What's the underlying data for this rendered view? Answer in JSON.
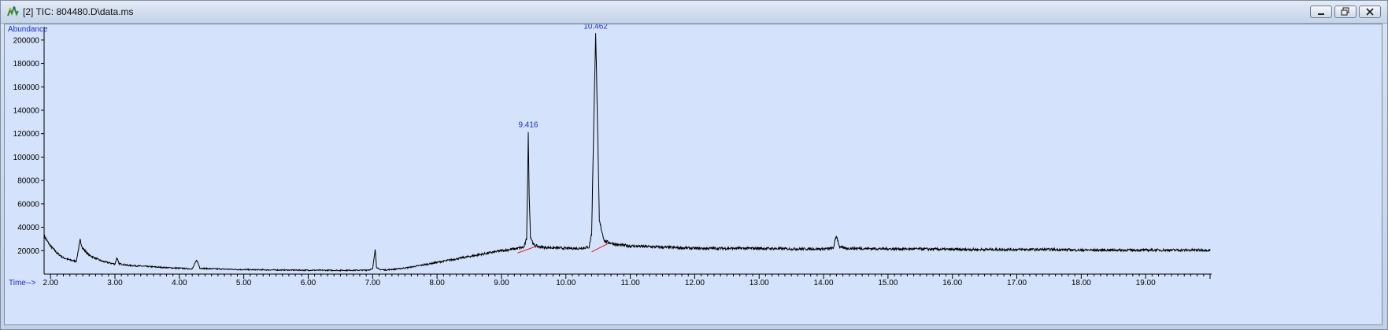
{
  "window": {
    "title": "[2] TIC: 804480.D\\data.ms",
    "icon": "chromatogram-app-icon",
    "controls": [
      "minimize-icon",
      "restore-icon",
      "close-icon"
    ]
  },
  "chart_data": {
    "type": "line",
    "ylabel": "Abundance",
    "xlabel": "Time-->",
    "xlim": [
      1.9,
      20.0
    ],
    "ylim": [
      0,
      210000
    ],
    "x_ticks": [
      2.0,
      3.0,
      4.0,
      5.0,
      6.0,
      7.0,
      8.0,
      9.0,
      10.0,
      11.0,
      12.0,
      13.0,
      14.0,
      15.0,
      16.0,
      17.0,
      18.0,
      19.0
    ],
    "x_tick_labels": [
      "2.00",
      "3.00",
      "4.00",
      "5.00",
      "6.00",
      "7.00",
      "8.00",
      "9.00",
      "10.00",
      "11.00",
      "12.00",
      "13.00",
      "14.00",
      "15.00",
      "16.00",
      "17.00",
      "18.00",
      "19.00"
    ],
    "y_ticks": [
      20000,
      40000,
      60000,
      80000,
      100000,
      120000,
      140000,
      160000,
      180000,
      200000
    ],
    "y_tick_labels": [
      "20000",
      "40000",
      "60000",
      "80000",
      "100000",
      "120000",
      "140000",
      "160000",
      "180000",
      "200000"
    ],
    "series": [
      {
        "color": "#000000",
        "x": [
          1.9,
          1.95,
          2.0,
          2.1,
          2.2,
          2.3,
          2.4,
          2.46,
          2.5,
          2.6,
          2.8,
          3.0,
          3.03,
          3.06,
          3.2,
          3.5,
          3.8,
          4.0,
          4.2,
          4.27,
          4.32,
          4.5,
          5.0,
          5.5,
          6.0,
          6.5,
          6.9,
          7.0,
          7.04,
          7.06,
          7.1,
          7.2,
          7.4,
          7.6,
          7.8,
          8.0,
          8.2,
          8.4,
          8.6,
          8.8,
          9.0,
          9.2,
          9.35,
          9.39,
          9.41,
          9.416,
          9.43,
          9.45,
          9.5,
          9.6,
          9.8,
          10.0,
          10.2,
          10.36,
          10.4,
          10.43,
          10.462,
          10.48,
          10.52,
          10.6,
          10.8,
          11.0,
          11.5,
          12.0,
          12.5,
          13.0,
          13.5,
          14.0,
          14.15,
          14.2,
          14.25,
          14.35,
          14.5,
          15.0,
          15.5,
          16.0,
          16.5,
          17.0,
          17.5,
          18.0,
          18.5,
          19.0,
          19.5,
          20.0
        ],
        "y": [
          33000,
          28000,
          24000,
          18000,
          14000,
          12000,
          11000,
          29000,
          22000,
          16000,
          11000,
          8500,
          14000,
          9000,
          7500,
          6500,
          5500,
          5000,
          4500,
          12000,
          5000,
          4500,
          3800,
          3500,
          3300,
          3200,
          3300,
          4200,
          22000,
          6000,
          4000,
          3500,
          4500,
          6000,
          8000,
          10000,
          12000,
          14000,
          16000,
          18000,
          20000,
          21500,
          23000,
          30000,
          95000,
          123000,
          70000,
          32000,
          25000,
          23000,
          22500,
          22000,
          22000,
          23000,
          35000,
          120000,
          207000,
          160000,
          45000,
          28000,
          25000,
          24000,
          23000,
          22000,
          22000,
          22000,
          21500,
          21500,
          22000,
          33000,
          23000,
          22000,
          22000,
          21500,
          21500,
          21000,
          21000,
          21000,
          21000,
          20500,
          20500,
          20500,
          20500,
          20500
        ]
      }
    ],
    "peak_labels": [
      {
        "x": 9.416,
        "y": 123000,
        "label": "9.416"
      },
      {
        "x": 10.462,
        "y": 207000,
        "label": "10.462"
      }
    ],
    "baselines": [
      {
        "color": "#e02020",
        "segments": [
          [
            9.25,
            18000,
            9.55,
            24000
          ],
          [
            10.4,
            19000,
            10.65,
            26000
          ]
        ]
      }
    ],
    "grid": false,
    "legend": "none"
  }
}
